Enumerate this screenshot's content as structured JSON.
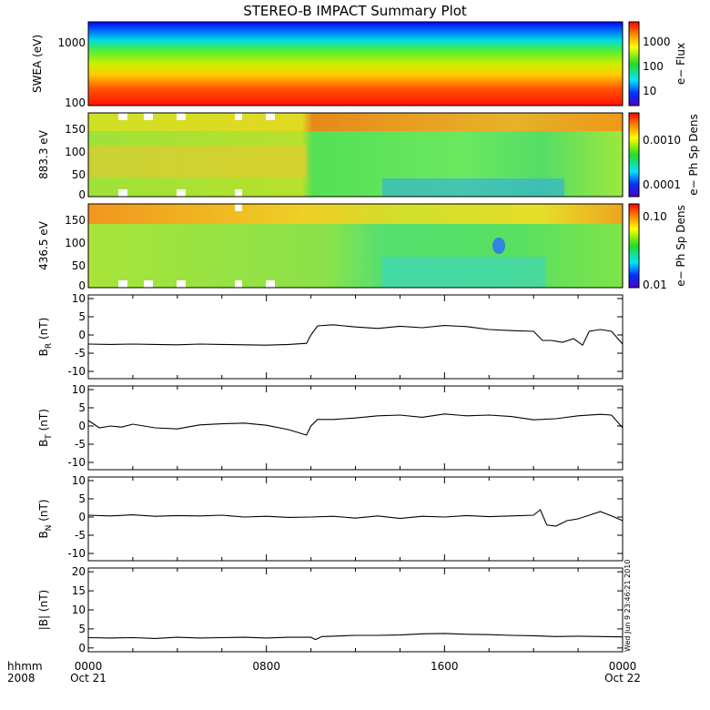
{
  "title": "STEREO-B IMPACT Summary Plot",
  "footer": {
    "row1_label": "hhmm",
    "row2_label": "2008",
    "ticks": [
      "0000",
      "0800",
      "1600",
      "0000"
    ],
    "dates": [
      "Oct 21",
      "Oct 22"
    ],
    "stamp": "Wed Jun  9 23:46:21 2010"
  },
  "chart_data": [
    {
      "type": "heatmap",
      "ylabel": "SWEA (eV)",
      "yscale": "log",
      "yticks": [
        "100",
        "1000"
      ],
      "colorbar_label": "e− Flux",
      "colorbar_scale": "log",
      "colorbar_ticks": [
        "10",
        "100",
        "1000"
      ],
      "description_rows_low_to_high_energy": [
        "red",
        "orange",
        "yellow",
        "green",
        "cyan",
        "blue"
      ]
    },
    {
      "type": "heatmap",
      "ylabel": "883.3 eV",
      "ylim": [
        0,
        180
      ],
      "yticks": [
        "0",
        "50",
        "100",
        "150"
      ],
      "colorbar_label": "e− Ph Sp Dens",
      "colorbar_scale": "log",
      "colorbar_ticks": [
        "0.0001",
        "0.0010"
      ]
    },
    {
      "type": "heatmap",
      "ylabel": "436.5 eV",
      "ylim": [
        0,
        180
      ],
      "yticks": [
        "0",
        "50",
        "100",
        "150"
      ],
      "colorbar_label": "e− Ph Sp Dens",
      "colorbar_scale": "log",
      "colorbar_ticks": [
        "0.01",
        "0.10"
      ]
    },
    {
      "type": "line",
      "ylabel": "B",
      "ylabel_sub": "R",
      "ylabel_unit": " (nT)",
      "ylim": [
        -12,
        11
      ],
      "yticks": [
        "-10",
        "-5",
        "0",
        "5",
        "10"
      ],
      "x_hours": [
        0,
        1,
        2,
        3,
        4,
        5,
        6,
        7,
        8,
        9,
        9.8,
        10.0,
        10.3,
        11,
        12,
        13,
        14,
        15,
        16,
        17,
        18,
        19,
        20,
        20.4,
        20.8,
        21.3,
        21.8,
        22.2,
        22.5,
        23,
        23.5,
        24
      ],
      "values": [
        -2.5,
        -2.6,
        -2.5,
        -2.6,
        -2.7,
        -2.5,
        -2.6,
        -2.7,
        -2.8,
        -2.6,
        -2.3,
        0.0,
        2.5,
        2.8,
        2.2,
        1.8,
        2.4,
        2.0,
        2.6,
        2.3,
        1.5,
        1.2,
        1.0,
        -1.5,
        -1.5,
        -2.0,
        -1.0,
        -2.8,
        1.0,
        1.5,
        1.0,
        -2.5
      ]
    },
    {
      "type": "line",
      "ylabel": "B",
      "ylabel_sub": "T",
      "ylabel_unit": " (nT)",
      "ylim": [
        -12,
        11
      ],
      "yticks": [
        "-10",
        "-5",
        "0",
        "5",
        "10"
      ],
      "x_hours": [
        0,
        0.5,
        1,
        1.5,
        2,
        3,
        4,
        5,
        6,
        7,
        8,
        9,
        9.8,
        10.0,
        10.3,
        11,
        12,
        13,
        14,
        15,
        16,
        17,
        18,
        19,
        20,
        21,
        22,
        23,
        23.5,
        24
      ],
      "values": [
        1.5,
        -0.5,
        0.0,
        -0.3,
        0.5,
        -0.5,
        -0.8,
        0.3,
        0.6,
        0.8,
        0.2,
        -1.0,
        -2.5,
        0.0,
        1.8,
        1.8,
        2.2,
        2.8,
        3.0,
        2.4,
        3.3,
        2.8,
        3.0,
        2.6,
        1.7,
        2.0,
        2.8,
        3.2,
        3.0,
        -0.5
      ]
    },
    {
      "type": "line",
      "ylabel": "B",
      "ylabel_sub": "N",
      "ylabel_unit": " (nT)",
      "ylim": [
        -12,
        11
      ],
      "yticks": [
        "-10",
        "-5",
        "0",
        "5",
        "10"
      ],
      "x_hours": [
        0,
        1,
        2,
        3,
        4,
        5,
        6,
        7,
        8,
        9,
        10,
        11,
        12,
        13,
        14,
        15,
        16,
        17,
        18,
        19,
        20,
        20.3,
        20.6,
        21,
        21.5,
        22,
        22.5,
        23,
        23.5,
        24
      ],
      "values": [
        0.5,
        0.3,
        0.6,
        0.2,
        0.4,
        0.3,
        0.5,
        0.0,
        0.2,
        -0.1,
        0.0,
        0.2,
        -0.3,
        0.3,
        -0.4,
        0.2,
        0.0,
        0.4,
        0.1,
        0.3,
        0.5,
        2.0,
        -2.2,
        -2.5,
        -1.0,
        -0.5,
        0.5,
        1.5,
        0.3,
        -1.0
      ]
    },
    {
      "type": "line",
      "ylabel": "|B| (nT)",
      "ylim": [
        -1,
        21
      ],
      "yticks": [
        "0",
        "5",
        "10",
        "15",
        "20"
      ],
      "x_hours": [
        0,
        1,
        2,
        3,
        4,
        5,
        6,
        7,
        8,
        9,
        10,
        10.2,
        10.5,
        11,
        12,
        13,
        14,
        15,
        16,
        17,
        18,
        19,
        20,
        21,
        22,
        23,
        24
      ],
      "values": [
        2.7,
        2.6,
        2.7,
        2.5,
        2.8,
        2.6,
        2.7,
        2.8,
        2.6,
        2.8,
        2.8,
        2.2,
        3.0,
        3.1,
        3.3,
        3.3,
        3.4,
        3.7,
        3.8,
        3.6,
        3.5,
        3.3,
        3.2,
        3.0,
        3.1,
        3.0,
        2.9
      ]
    }
  ]
}
